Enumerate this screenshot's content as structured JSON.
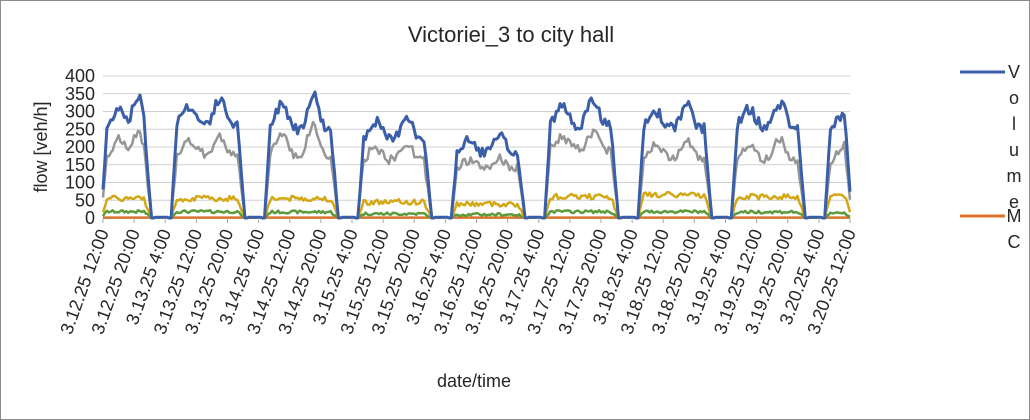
{
  "chart_data": {
    "type": "line",
    "title": "Victoriei_3 to city hall",
    "xlabel": "date/time",
    "ylabel": "flow [veh/h]",
    "ylim": [
      0,
      400
    ],
    "yticks": [
      0,
      50,
      100,
      150,
      200,
      250,
      300,
      350,
      400
    ],
    "grid": true,
    "legend": "right",
    "x_tick_labels": [
      "3.12.25 12:00",
      "3.12.25 20:00",
      "3.13.25 4:00",
      "3.13.25 12:00",
      "3.13.25 20:00",
      "3.14.25 4:00",
      "3.14.25 12:00",
      "3.14.25 20:00",
      "3.15.25 4:00",
      "3.15.25 12:00",
      "3.15.25 20:00",
      "3.16.25 4:00",
      "3.16.25 12:00",
      "3.16.25 20:00",
      "3.17.25 4:00",
      "3.17.25 12:00",
      "3.17.25 20:00",
      "3.18.25 4:00",
      "3.18.25 12:00",
      "3.18.25 20:00",
      "3.19.25 4:00",
      "3.19.25 12:00",
      "3.19.25 20:00",
      "3.20.25 4:00",
      "3.20.25 12:00"
    ],
    "x_range_hours": [
      0,
      192
    ],
    "day_profiles": [
      {
        "day": "3.12.25",
        "start": 0,
        "end": 12,
        "volume_peak": 365,
        "volume_level": 280,
        "grey_peak": 255,
        "grey_level": 200,
        "yellow_level": 55,
        "green_level": 18
      },
      {
        "day": "3.13.25",
        "start": 18,
        "end": 36,
        "volume_peak": 350,
        "volume_level": 310,
        "grey_peak": 240,
        "grey_level": 210,
        "yellow_level": 55,
        "green_level": 18
      },
      {
        "day": "3.14.25",
        "start": 42,
        "end": 60,
        "volume_peak": 375,
        "volume_level": 290,
        "grey_peak": 285,
        "grey_level": 200,
        "yellow_level": 55,
        "green_level": 17
      },
      {
        "day": "3.15.25",
        "start": 66,
        "end": 84,
        "volume_peak": 310,
        "volume_level": 255,
        "grey_peak": 225,
        "grey_level": 190,
        "yellow_level": 45,
        "green_level": 12
      },
      {
        "day": "3.16.25",
        "start": 90,
        "end": 108,
        "volume_peak": 240,
        "volume_level": 215,
        "grey_peak": 175,
        "grey_level": 165,
        "yellow_level": 40,
        "green_level": 10
      },
      {
        "day": "3.17.25",
        "start": 114,
        "end": 132,
        "volume_peak": 350,
        "volume_level": 305,
        "grey_peak": 255,
        "grey_level": 225,
        "yellow_level": 60,
        "green_level": 18
      },
      {
        "day": "3.18.25",
        "start": 138,
        "end": 156,
        "volume_peak": 335,
        "volume_level": 295,
        "grey_peak": 240,
        "grey_level": 195,
        "yellow_level": 65,
        "green_level": 18
      },
      {
        "day": "3.19.25",
        "start": 162,
        "end": 180,
        "volume_peak": 340,
        "volume_level": 300,
        "grey_peak": 240,
        "grey_level": 190,
        "yellow_level": 60,
        "green_level": 17
      },
      {
        "day": "3.20.25",
        "start": 186,
        "end": 192,
        "volume_peak": 300,
        "volume_level": 290,
        "grey_peak": 205,
        "grey_level": 185,
        "yellow_level": 65,
        "green_level": 15
      }
    ],
    "series": [
      {
        "name": "Volume",
        "color": "#3b5ea8",
        "key": "volume"
      },
      {
        "color": "#969696",
        "key": "grey"
      },
      {
        "color": "#d4a714",
        "key": "yellow"
      },
      {
        "color": "#5b9b3a",
        "key": "green"
      },
      {
        "name": "MC",
        "color": "#d9722b",
        "key": "mc"
      }
    ],
    "legend_entries": [
      {
        "label": "Volume",
        "color": "#3b5ea8"
      },
      {
        "label": "MC",
        "color": "#d9722b"
      }
    ]
  }
}
